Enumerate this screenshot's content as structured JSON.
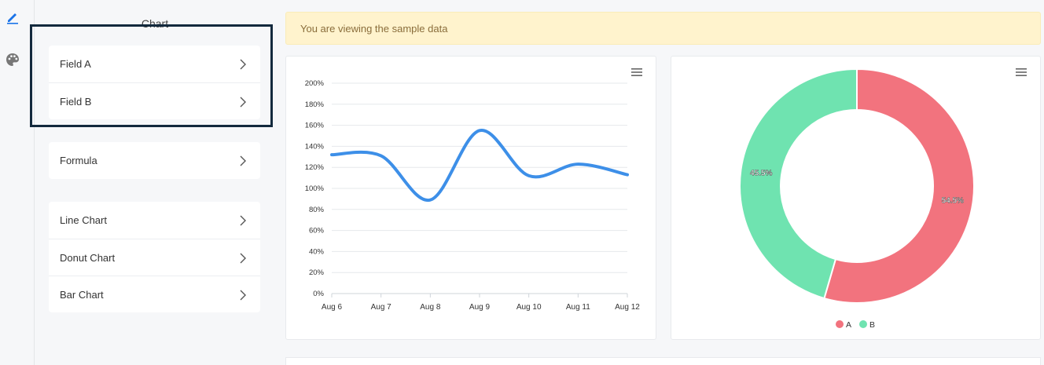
{
  "sidebar": {
    "title": "Chart",
    "groups": [
      [
        "Field A",
        "Field B"
      ],
      [
        "Formula"
      ],
      [
        "Line Chart",
        "Donut Chart",
        "Bar Chart"
      ]
    ]
  },
  "banner": {
    "text": "You are viewing the sample data"
  },
  "colors": {
    "line": "#3d8fe8",
    "donut_a": "#f2737e",
    "donut_b": "#6fe3b0",
    "highlight": "#13293d",
    "rail_edit": "#1a73e8"
  },
  "icons": {
    "rail": [
      "pencil-icon",
      "palette-icon"
    ],
    "panel_menu": "hamburger-menu-icon",
    "item_arrow": "chevron-right-icon"
  },
  "chart_data": [
    {
      "type": "line",
      "x": [
        "Aug 6",
        "Aug 7",
        "Aug 8",
        "Aug 9",
        "Aug 10",
        "Aug 11",
        "Aug 12"
      ],
      "series": [
        {
          "values": [
            132,
            131,
            89,
            155,
            112,
            123,
            113
          ]
        }
      ],
      "y_ticks": [
        "0%",
        "20%",
        "40%",
        "60%",
        "80%",
        "100%",
        "120%",
        "140%",
        "160%",
        "180%",
        "200%"
      ],
      "ylim": [
        0,
        200
      ],
      "grid": true
    },
    {
      "type": "pie",
      "donut": true,
      "slices": [
        {
          "name": "A",
          "value": 54.5,
          "label": "54.5%"
        },
        {
          "name": "B",
          "value": 45.5,
          "label": "45.5%"
        }
      ],
      "legend": [
        "A",
        "B"
      ],
      "legend_position": "bottom"
    }
  ]
}
